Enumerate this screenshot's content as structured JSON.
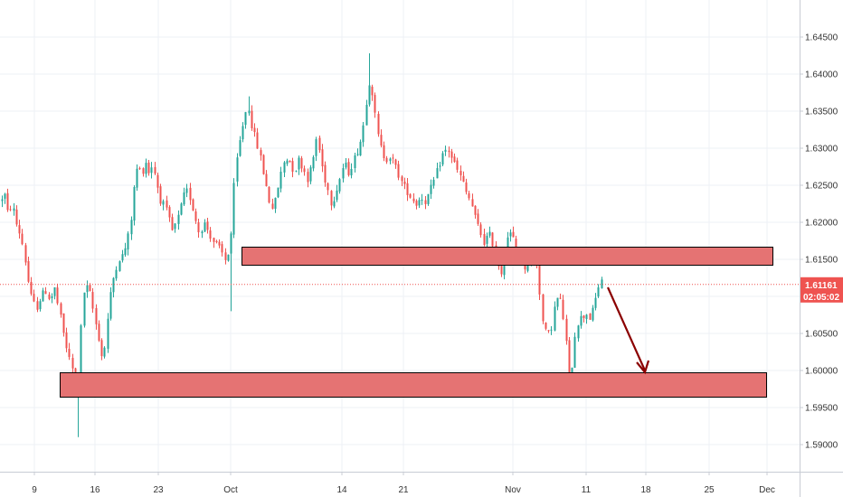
{
  "colors": {
    "up": "#26a69a",
    "down": "#ef5350",
    "zone_fill": "#e57373",
    "zone_border": "#000000",
    "arrow": "#8b0000",
    "last_price": "#ef5350",
    "grid": "#eef1f5",
    "axis_text": "#333333"
  },
  "chart_data": {
    "type": "candlestick",
    "x_tick_labels": [
      "9",
      "16",
      "23",
      "Oct",
      "14",
      "21",
      "Nov",
      "11",
      "18",
      "25",
      "Dec"
    ],
    "y_tick_labels": [
      "1.64500",
      "1.64000",
      "1.63500",
      "1.63000",
      "1.62500",
      "1.62000",
      "1.61500",
      "1.61000",
      "1.60500",
      "1.60000",
      "1.59500",
      "1.59000"
    ],
    "ylim": [
      1.5862,
      1.6515
    ],
    "last_price": "1.61161",
    "countdown": "02:05:02",
    "path": [
      [
        0,
        1.6228
      ],
      [
        4,
        1.6242
      ],
      [
        8,
        1.6213
      ],
      [
        13,
        1.6224
      ],
      [
        18,
        1.6196
      ],
      [
        23,
        1.618
      ],
      [
        27,
        1.6152
      ],
      [
        31,
        1.6118
      ],
      [
        35,
        1.6093
      ],
      [
        40,
        1.6085
      ],
      [
        45,
        1.61
      ],
      [
        50,
        1.6108
      ],
      [
        55,
        1.6095
      ],
      [
        60,
        1.611
      ],
      [
        65,
        1.608
      ],
      [
        70,
        1.6048
      ],
      [
        75,
        1.602
      ],
      [
        80,
        1.6
      ],
      [
        85,
        1.5955
      ],
      [
        88,
        1.6035
      ],
      [
        92,
        1.6105
      ],
      [
        96,
        1.6112
      ],
      [
        100,
        1.61
      ],
      [
        104,
        1.607
      ],
      [
        108,
        1.605
      ],
      [
        112,
        1.602
      ],
      [
        116,
        1.6035
      ],
      [
        120,
        1.609
      ],
      [
        125,
        1.6125
      ],
      [
        130,
        1.615
      ],
      [
        135,
        1.6155
      ],
      [
        140,
        1.6172
      ],
      [
        144,
        1.62
      ],
      [
        148,
        1.6248
      ],
      [
        152,
        1.628
      ],
      [
        156,
        1.6262
      ],
      [
        160,
        1.6285
      ],
      [
        164,
        1.6268
      ],
      [
        168,
        1.6278
      ],
      [
        172,
        1.626
      ],
      [
        176,
        1.6232
      ],
      [
        180,
        1.6225
      ],
      [
        185,
        1.621
      ],
      [
        190,
        1.6188
      ],
      [
        195,
        1.62
      ],
      [
        200,
        1.6222
      ],
      [
        205,
        1.6245
      ],
      [
        210,
        1.6232
      ],
      [
        215,
        1.6208
      ],
      [
        220,
        1.6185
      ],
      [
        225,
        1.62
      ],
      [
        230,
        1.6188
      ],
      [
        235,
        1.6175
      ],
      [
        240,
        1.6168
      ],
      [
        245,
        1.6158
      ],
      [
        250,
        1.6145
      ],
      [
        255,
        1.6185
      ],
      [
        258,
        1.6245
      ],
      [
        262,
        1.629
      ],
      [
        266,
        1.6318
      ],
      [
        270,
        1.6345
      ],
      [
        274,
        1.6358
      ],
      [
        278,
        1.633
      ],
      [
        282,
        1.6312
      ],
      [
        286,
        1.6295
      ],
      [
        290,
        1.6272
      ],
      [
        294,
        1.6248
      ],
      [
        298,
        1.6225
      ],
      [
        302,
        1.6218
      ],
      [
        306,
        1.6242
      ],
      [
        310,
        1.6265
      ],
      [
        315,
        1.6288
      ],
      [
        320,
        1.6282
      ],
      [
        325,
        1.6268
      ],
      [
        330,
        1.6285
      ],
      [
        335,
        1.6272
      ],
      [
        340,
        1.6258
      ],
      [
        345,
        1.628
      ],
      [
        350,
        1.6318
      ],
      [
        354,
        1.6285
      ],
      [
        358,
        1.6262
      ],
      [
        362,
        1.6245
      ],
      [
        366,
        1.6225
      ],
      [
        370,
        1.6238
      ],
      [
        375,
        1.6258
      ],
      [
        380,
        1.628
      ],
      [
        385,
        1.6268
      ],
      [
        390,
        1.6282
      ],
      [
        395,
        1.6298
      ],
      [
        400,
        1.6318
      ],
      [
        404,
        1.636
      ],
      [
        408,
        1.6392
      ],
      [
        412,
        1.637
      ],
      [
        415,
        1.6335
      ],
      [
        418,
        1.6312
      ],
      [
        422,
        1.6295
      ],
      [
        426,
        1.6285
      ],
      [
        430,
        1.629
      ],
      [
        435,
        1.628
      ],
      [
        440,
        1.6265
      ],
      [
        445,
        1.625
      ],
      [
        450,
        1.6242
      ],
      [
        455,
        1.6232
      ],
      [
        460,
        1.6225
      ],
      [
        465,
        1.6235
      ],
      [
        470,
        1.6228
      ],
      [
        475,
        1.6242
      ],
      [
        480,
        1.6258
      ],
      [
        485,
        1.6278
      ],
      [
        490,
        1.6295
      ],
      [
        495,
        1.6298
      ],
      [
        500,
        1.6285
      ],
      [
        505,
        1.627
      ],
      [
        510,
        1.6258
      ],
      [
        515,
        1.624
      ],
      [
        520,
        1.6228
      ],
      [
        525,
        1.6205
      ],
      [
        530,
        1.6188
      ],
      [
        535,
        1.6172
      ],
      [
        540,
        1.6185
      ],
      [
        545,
        1.617
      ],
      [
        550,
        1.615
      ],
      [
        553,
        1.6122
      ],
      [
        556,
        1.6155
      ],
      [
        560,
        1.618
      ],
      [
        565,
        1.6185
      ],
      [
        570,
        1.6165
      ],
      [
        575,
        1.615
      ],
      [
        580,
        1.614
      ],
      [
        585,
        1.6148
      ],
      [
        590,
        1.616
      ],
      [
        594,
        1.614
      ],
      [
        597,
        1.6095
      ],
      [
        600,
        1.606
      ],
      [
        604,
        1.6048
      ],
      [
        608,
        1.605
      ],
      [
        612,
        1.6082
      ],
      [
        616,
        1.6098
      ],
      [
        620,
        1.6092
      ],
      [
        624,
        1.6055
      ],
      [
        627,
        1.602
      ],
      [
        629,
        1.5985
      ],
      [
        632,
        1.6008
      ],
      [
        636,
        1.6058
      ],
      [
        640,
        1.607
      ],
      [
        644,
        1.6072
      ],
      [
        648,
        1.6078
      ],
      [
        652,
        1.607
      ],
      [
        656,
        1.6085
      ],
      [
        660,
        1.6108
      ],
      [
        664,
        1.6125
      ],
      [
        667,
        1.6116
      ]
    ],
    "extremes": [
      [
        408,
        1.6428
      ],
      [
        85,
        1.591
      ],
      [
        629,
        1.5975
      ],
      [
        255,
        1.608
      ],
      [
        274,
        1.637
      ]
    ]
  }
}
